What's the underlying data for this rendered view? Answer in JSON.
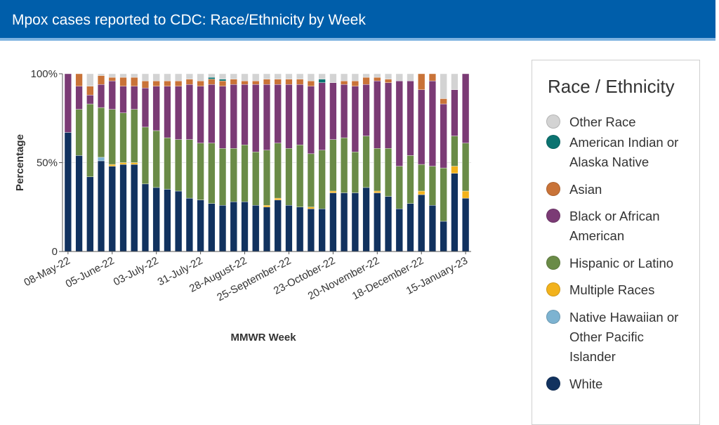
{
  "header": {
    "title": "Mpox cases reported to CDC: Race/Ethnicity by Week"
  },
  "legend": {
    "title": "Race / Ethnicity",
    "items": [
      {
        "key": "other",
        "label": "Other Race",
        "color": "#d3d3d3"
      },
      {
        "key": "aian",
        "label": "American Indian or Alaska Native",
        "color": "#0b7370"
      },
      {
        "key": "asian",
        "label": "Asian",
        "color": "#c97338"
      },
      {
        "key": "black",
        "label": "Black or African American",
        "color": "#7b3b75"
      },
      {
        "key": "hispanic",
        "label": "Hispanic or Latino",
        "color": "#6a8b47"
      },
      {
        "key": "multiple",
        "label": "Multiple Races",
        "color": "#f2b21c"
      },
      {
        "key": "nhpi",
        "label": "Native Hawaiian or Other Pacific Islander",
        "color": "#7db3d1"
      },
      {
        "key": "white",
        "label": "White",
        "color": "#11325f"
      }
    ]
  },
  "chart_data": {
    "type": "bar",
    "stacked": true,
    "normalized": true,
    "xlabel": "MMWR Week",
    "ylabel": "Percentage",
    "yticks": [
      "0",
      "50%",
      "100%"
    ],
    "ylim": [
      0,
      100
    ],
    "xticks": [
      "08-May-22",
      "05-June-22",
      "03-July-22",
      "31-July-22",
      "28-August-22",
      "25-September-22",
      "23-October-22",
      "20-November-22",
      "18-December-22",
      "15-January-23"
    ],
    "xtick_every": 4,
    "stack_order": [
      "white",
      "nhpi",
      "multiple",
      "hispanic",
      "black",
      "asian",
      "aian",
      "other"
    ],
    "series": [
      {
        "name": "White",
        "key": "white",
        "values": [
          67,
          54,
          42,
          51,
          48,
          49,
          49,
          38,
          36,
          35,
          34,
          30,
          29,
          27,
          26,
          28,
          28,
          26,
          25,
          29,
          26,
          25,
          24,
          24,
          33,
          33,
          33,
          36,
          33,
          31,
          24,
          27,
          32,
          26,
          17,
          44,
          30
        ]
      },
      {
        "name": "Native Hawaiian or Other Pacific Islander",
        "key": "nhpi",
        "values": [
          0,
          0,
          0,
          2,
          0,
          0,
          0,
          0,
          0,
          0,
          0,
          0,
          0,
          0,
          0,
          0,
          0,
          0,
          0,
          0,
          0,
          0,
          0,
          0,
          0,
          0,
          0,
          0,
          0,
          0,
          0,
          0,
          0,
          0,
          0,
          0,
          0
        ]
      },
      {
        "name": "Multiple Races",
        "key": "multiple",
        "values": [
          0,
          0,
          0,
          0,
          1,
          1,
          1,
          0,
          0,
          0,
          0,
          0,
          0,
          0,
          0,
          0,
          0,
          0,
          1,
          1,
          0,
          0,
          1,
          0,
          1,
          0,
          0,
          0,
          1,
          0,
          0,
          0,
          2,
          0,
          0,
          4,
          4
        ]
      },
      {
        "name": "Hispanic or Latino",
        "key": "hispanic",
        "values": [
          0,
          26,
          41,
          28,
          31,
          28,
          30,
          32,
          32,
          29,
          29,
          33,
          32,
          34,
          32,
          30,
          32,
          30,
          31,
          31,
          32,
          35,
          30,
          33,
          29,
          31,
          23,
          29,
          24,
          27,
          24,
          27,
          15,
          22,
          30,
          17,
          27
        ]
      },
      {
        "name": "Black or African American",
        "key": "black",
        "values": [
          33,
          13,
          5,
          13,
          16,
          15,
          13,
          22,
          25,
          29,
          30,
          31,
          32,
          33,
          35,
          36,
          34,
          38,
          37,
          33,
          36,
          34,
          38,
          38,
          32,
          30,
          37,
          29,
          38,
          37,
          48,
          42,
          42,
          48,
          36,
          26,
          39
        ]
      },
      {
        "name": "Asian",
        "key": "asian",
        "values": [
          0,
          7,
          5,
          5,
          2,
          5,
          5,
          4,
          3,
          3,
          3,
          3,
          3,
          3,
          3,
          3,
          2,
          2,
          3,
          3,
          3,
          3,
          3,
          0,
          0,
          2,
          3,
          4,
          2,
          2,
          0,
          0,
          9,
          4,
          3,
          0,
          0
        ]
      },
      {
        "name": "American Indian or Alaska Native",
        "key": "aian",
        "values": [
          0,
          0,
          0,
          0,
          0,
          0,
          0,
          0,
          0,
          0,
          0,
          0,
          0,
          1,
          1,
          0,
          0,
          0,
          0,
          0,
          0,
          0,
          0,
          2,
          0,
          0,
          0,
          0,
          0,
          0,
          0,
          0,
          0,
          0,
          0,
          0,
          0
        ]
      },
      {
        "name": "Other Race",
        "key": "other",
        "values": [
          0,
          0,
          7,
          1,
          2,
          2,
          2,
          4,
          4,
          4,
          4,
          3,
          4,
          2,
          3,
          3,
          4,
          4,
          3,
          3,
          3,
          3,
          4,
          3,
          5,
          4,
          4,
          2,
          2,
          3,
          4,
          4,
          0,
          0,
          14,
          9,
          0
        ]
      }
    ]
  }
}
